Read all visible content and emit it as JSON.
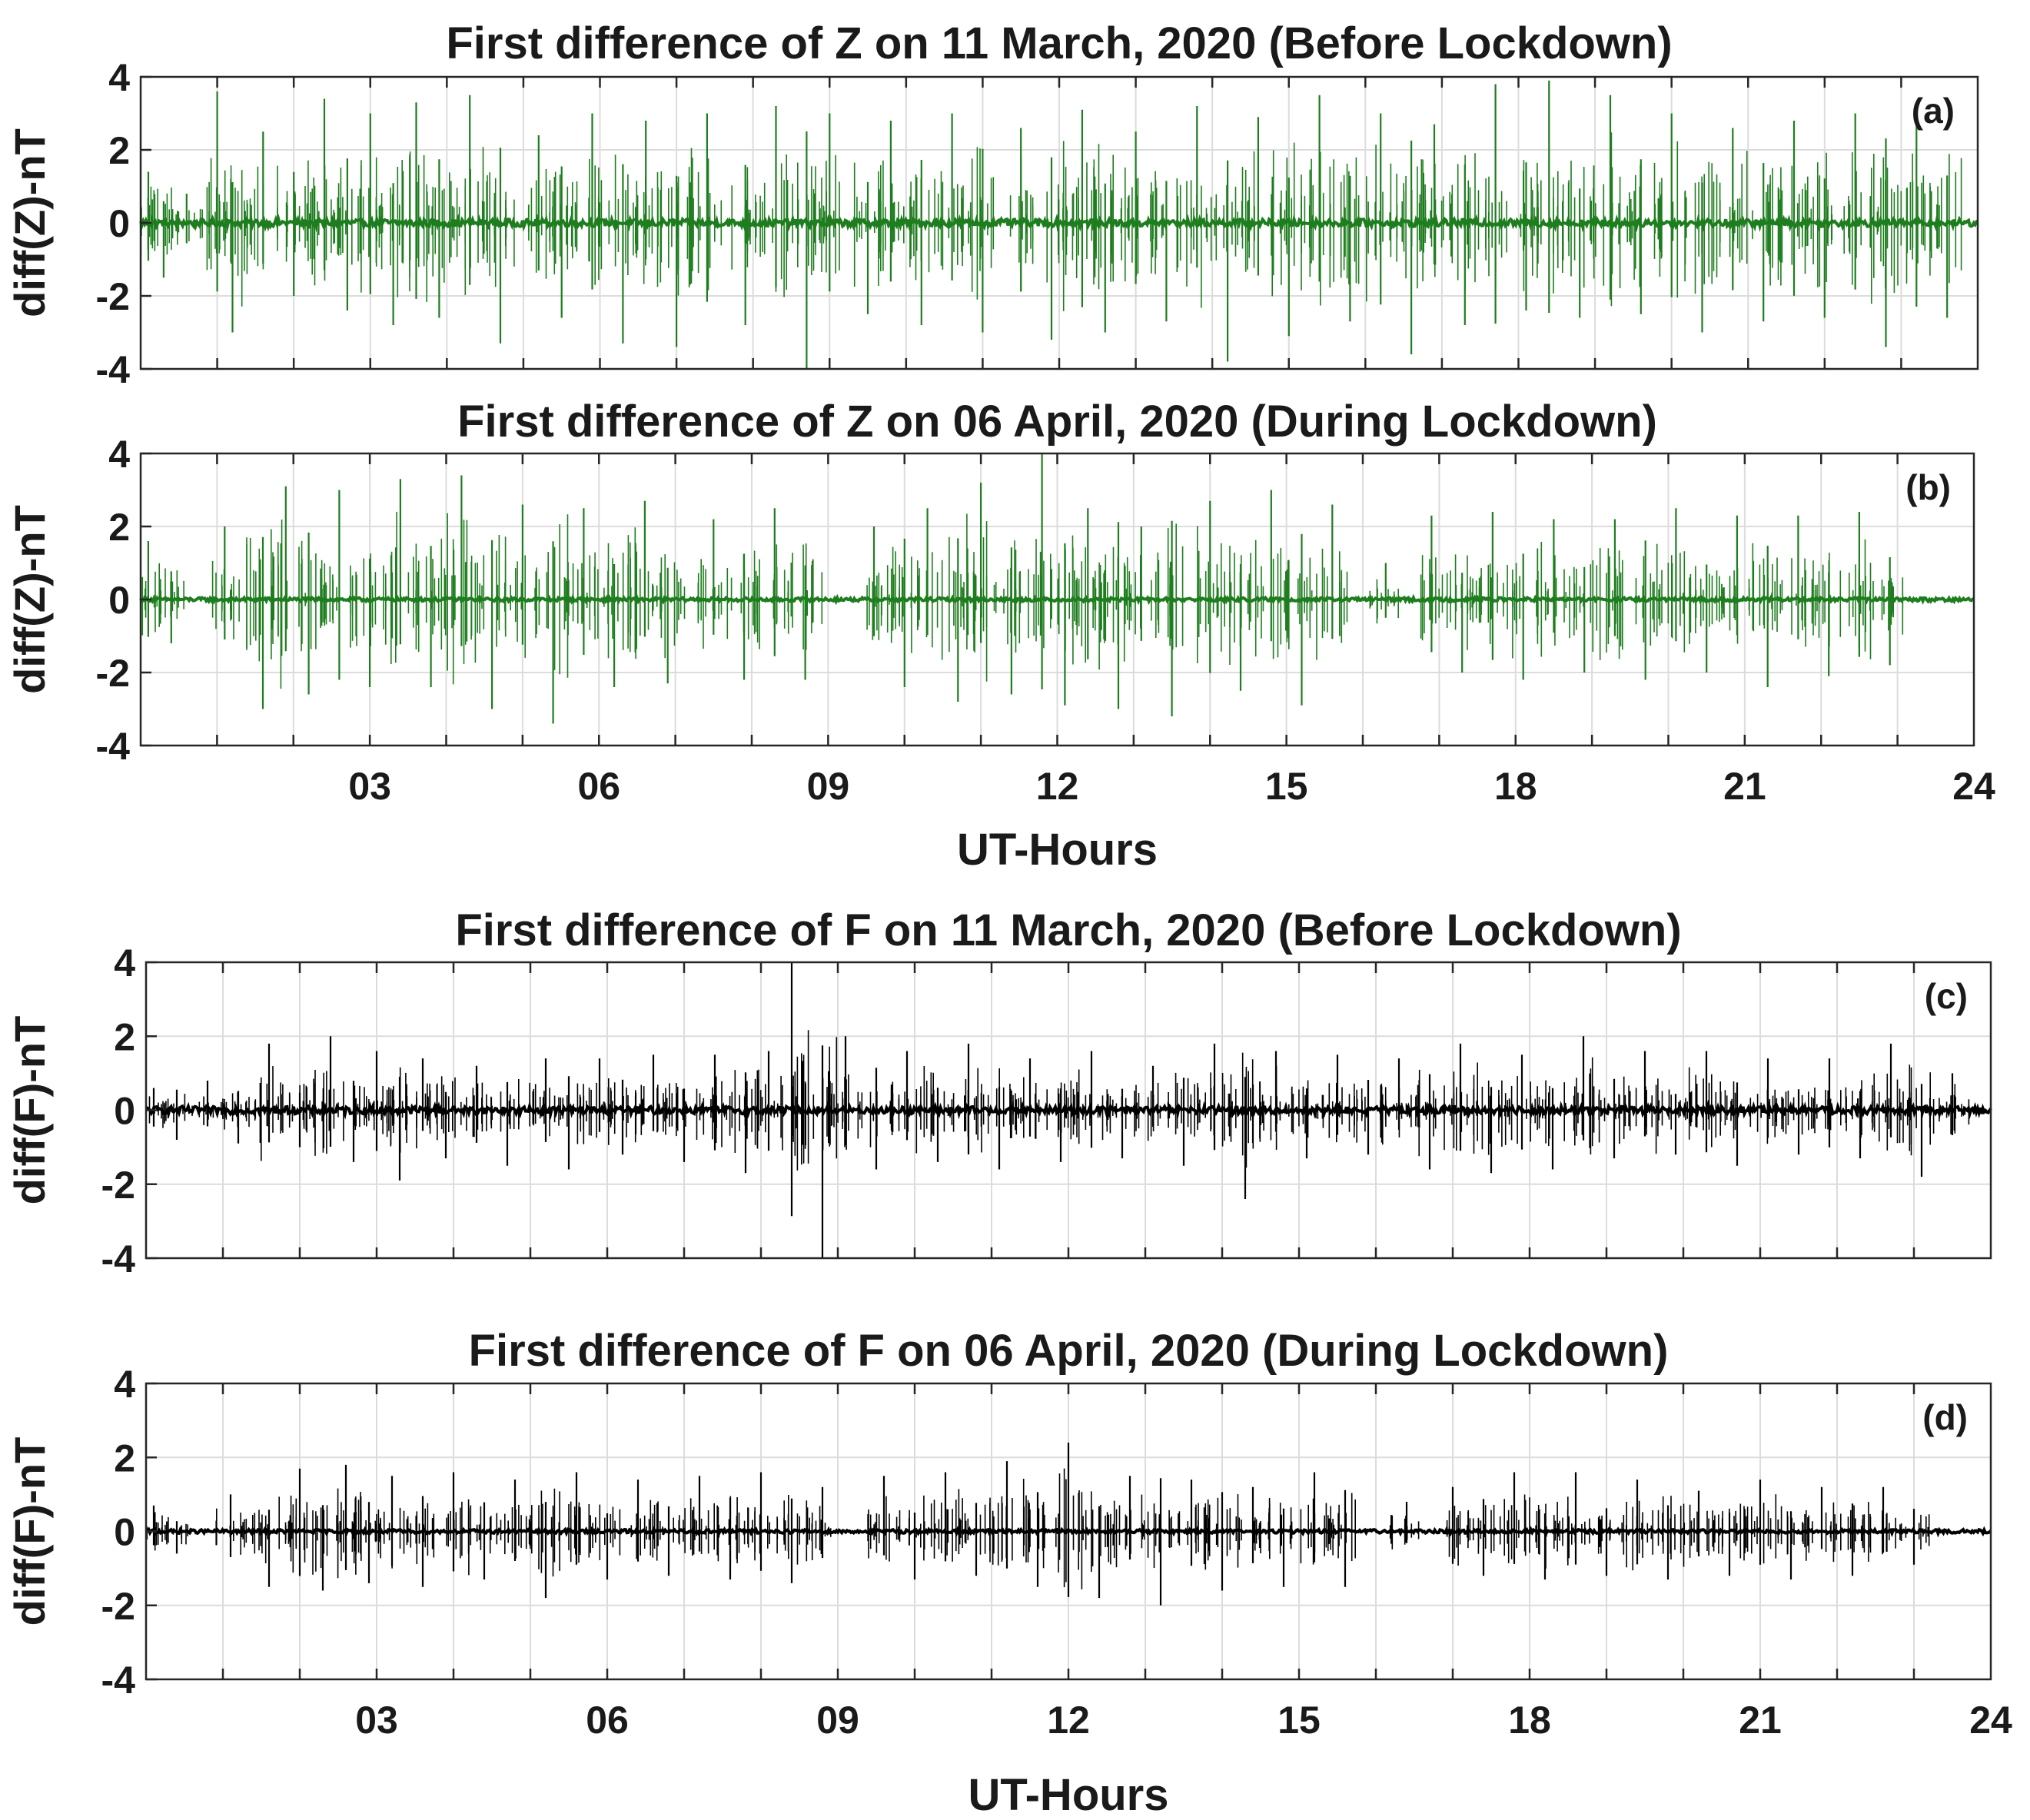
{
  "chart_data": [
    {
      "id": "a",
      "type": "line",
      "title": "First difference of Z on 11 March, 2020 (Before Lockdown)",
      "panel_label": "(a)",
      "ylabel": "diff(Z)-nT",
      "xlabel": "",
      "xlim": [
        0,
        24
      ],
      "ylim": [
        -4,
        4
      ],
      "yticks": [
        "4",
        "2",
        "0",
        "-2",
        "-4"
      ],
      "xticks": [],
      "grid": true,
      "color": "#1e7d1e",
      "series": [
        {
          "x": [
            0.1,
            0.3,
            0.6,
            1.0,
            1.2,
            1.6,
            2.0,
            2.4,
            2.7,
            3.0,
            3.3,
            3.6,
            3.9,
            4.3,
            4.7,
            5.2,
            5.5,
            5.9,
            6.3,
            6.6,
            7.0,
            7.4,
            7.9,
            8.3,
            8.7,
            9.0,
            9.5,
            9.8,
            10.2,
            10.6,
            11.0,
            11.5,
            11.9,
            12.3,
            12.6,
            13.0,
            13.4,
            13.8,
            14.2,
            14.6,
            15.0,
            15.4,
            15.8,
            16.2,
            16.6,
            16.9,
            17.3,
            17.7,
            18.1,
            18.4,
            18.8,
            19.2,
            19.6,
            20.0,
            20.4,
            20.8,
            21.2,
            21.6,
            22.0,
            22.4,
            22.8,
            23.2,
            23.6
          ],
          "y": [
            1.4,
            -1.5,
            0.8,
            3.6,
            -3.0,
            2.5,
            -2.0,
            3.4,
            -2.4,
            3.0,
            -2.8,
            3.3,
            -2.6,
            3.5,
            -3.3,
            2.4,
            -2.6,
            3.0,
            -3.3,
            2.8,
            -3.4,
            3.0,
            -2.8,
            3.2,
            -4.0,
            3.0,
            -2.5,
            2.8,
            -2.8,
            3.0,
            -3.0,
            2.6,
            -3.2,
            3.1,
            -3.0,
            2.5,
            -2.7,
            3.2,
            -3.8,
            2.9,
            -3.1,
            3.5,
            -2.7,
            3.0,
            -3.6,
            2.7,
            -2.8,
            3.8,
            -2.4,
            3.9,
            -2.6,
            3.5,
            -2.5,
            3.0,
            -3.0,
            2.6,
            -2.7,
            2.8,
            -2.6,
            3.0,
            -3.4,
            3.3,
            -2.6
          ]
        }
      ]
    },
    {
      "id": "b",
      "type": "line",
      "title": "First difference of Z on 06 April, 2020 (During Lockdown)",
      "panel_label": "(b)",
      "ylabel": "diff(Z)-nT",
      "xlabel": "UT-Hours",
      "xlim": [
        0,
        24
      ],
      "ylim": [
        -4,
        4
      ],
      "yticks": [
        "4",
        "2",
        "0",
        "-2",
        "-4"
      ],
      "xticks": [
        "03",
        "06",
        "09",
        "12",
        "15",
        "18",
        "21",
        "24"
      ],
      "grid": true,
      "color": "#1e7d1e",
      "series": [
        {
          "x": [
            0.1,
            0.4,
            1.1,
            1.6,
            1.9,
            2.2,
            2.6,
            3.0,
            3.4,
            3.8,
            4.2,
            4.6,
            5.0,
            5.4,
            5.8,
            6.2,
            6.6,
            6.9,
            7.5,
            7.9,
            8.3,
            8.7,
            9.6,
            10.0,
            10.3,
            10.7,
            11.0,
            11.4,
            11.8,
            12.1,
            12.4,
            12.8,
            13.1,
            13.5,
            14.0,
            14.4,
            14.8,
            15.2,
            15.6,
            16.3,
            16.9,
            17.3,
            17.7,
            18.1,
            18.5,
            18.9,
            19.3,
            19.7,
            20.1,
            20.5,
            20.9,
            21.3,
            21.7,
            22.1,
            22.5,
            22.9
          ],
          "y": [
            1.6,
            -1.2,
            2.0,
            -3.0,
            3.1,
            -2.6,
            3.0,
            -2.4,
            3.3,
            -2.4,
            3.4,
            -3.0,
            2.6,
            -3.4,
            2.5,
            -2.4,
            2.7,
            -2.3,
            2.2,
            -2.2,
            2.5,
            -2.2,
            2.0,
            -2.4,
            2.5,
            -2.8,
            3.2,
            -2.6,
            4.0,
            -2.9,
            2.5,
            -3.0,
            2.0,
            -3.2,
            2.7,
            -2.5,
            3.0,
            -2.9,
            2.6,
            1.0,
            2.3,
            -2.0,
            2.4,
            -2.2,
            2.2,
            -2.0,
            2.2,
            -2.2,
            2.5,
            -2.0,
            2.3,
            -2.4,
            2.3,
            -2.1,
            2.4,
            -1.8
          ]
        }
      ]
    },
    {
      "id": "c",
      "type": "line",
      "title": "First difference of F on 11 March, 2020 (Before Lockdown)",
      "panel_label": "(c)",
      "ylabel": "diff(F)-nT",
      "xlabel": "",
      "xlim": [
        0,
        24
      ],
      "ylim": [
        -4,
        4
      ],
      "yticks": [
        "4",
        "2",
        "0",
        "-2",
        "-4"
      ],
      "xticks": [],
      "grid": true,
      "color": "#000000",
      "series": [
        {
          "x": [
            0.1,
            0.4,
            0.8,
            1.2,
            1.6,
            2.0,
            2.4,
            2.7,
            3.0,
            3.3,
            3.6,
            3.9,
            4.3,
            4.7,
            5.2,
            5.5,
            5.9,
            6.2,
            6.6,
            7.0,
            7.4,
            7.8,
            8.1,
            8.4,
            8.8,
            9.1,
            9.5,
            9.9,
            10.3,
            10.7,
            11.1,
            11.5,
            11.9,
            12.3,
            12.7,
            13.1,
            13.5,
            13.9,
            14.3,
            14.7,
            15.1,
            15.5,
            15.9,
            16.3,
            16.7,
            17.1,
            17.5,
            17.9,
            18.3,
            18.7,
            19.1,
            19.5,
            19.9,
            20.3,
            20.7,
            21.1,
            21.5,
            21.9,
            22.3,
            22.7,
            23.1,
            23.5
          ],
          "y": [
            0.6,
            -0.8,
            0.8,
            -0.9,
            1.8,
            -1.0,
            2.0,
            -1.4,
            1.6,
            -1.9,
            1.4,
            -1.3,
            1.2,
            -1.5,
            1.4,
            -1.6,
            1.4,
            -1.2,
            1.5,
            -1.4,
            1.5,
            -1.7,
            1.6,
            4.0,
            -4.0,
            2.0,
            -1.6,
            1.6,
            -1.4,
            1.8,
            -1.6,
            1.4,
            -1.4,
            1.6,
            -1.3,
            1.2,
            -1.5,
            1.8,
            -2.4,
            1.6,
            -1.3,
            1.5,
            -1.2,
            1.4,
            -1.6,
            1.8,
            -1.7,
            1.5,
            -1.6,
            2.0,
            -1.3,
            1.6,
            -1.2,
            1.6,
            -1.5,
            1.4,
            -1.2,
            1.4,
            -1.3,
            1.8,
            -1.8,
            1.0
          ]
        }
      ]
    },
    {
      "id": "d",
      "type": "line",
      "title": "First difference of F on 06 April, 2020 (During Lockdown)",
      "panel_label": "(d)",
      "ylabel": "diff(F)-nT",
      "xlabel": "UT-Hours",
      "xlim": [
        0,
        24
      ],
      "ylim": [
        -4,
        4
      ],
      "yticks": [
        "4",
        "2",
        "0",
        "-2",
        "-4"
      ],
      "xticks": [
        "03",
        "06",
        "09",
        "12",
        "15",
        "18",
        "21",
        "24"
      ],
      "grid": true,
      "color": "#000000",
      "series": [
        {
          "x": [
            0.1,
            0.4,
            1.1,
            1.6,
            2.0,
            2.3,
            2.6,
            2.9,
            3.2,
            3.6,
            4.0,
            4.4,
            4.8,
            5.2,
            5.6,
            6.0,
            6.4,
            6.8,
            7.2,
            7.6,
            8.0,
            8.4,
            8.8,
            9.6,
            10.0,
            10.4,
            10.8,
            11.2,
            11.6,
            12.0,
            12.4,
            12.8,
            13.2,
            13.6,
            14.0,
            14.4,
            14.8,
            15.2,
            15.6,
            16.4,
            17.0,
            17.4,
            17.8,
            18.2,
            18.6,
            19.0,
            19.4,
            19.8,
            20.2,
            20.6,
            21.0,
            21.4,
            21.8,
            22.2,
            22.6,
            23.0
          ],
          "y": [
            0.7,
            -0.6,
            1.0,
            -1.5,
            1.7,
            -1.6,
            1.8,
            -1.4,
            1.5,
            -1.5,
            1.6,
            -1.3,
            1.4,
            -1.8,
            1.6,
            -1.3,
            1.4,
            -1.2,
            1.5,
            -1.3,
            1.6,
            -1.4,
            1.2,
            1.5,
            -1.3,
            1.6,
            -1.2,
            1.9,
            -1.5,
            2.4,
            -1.8,
            1.5,
            -2.0,
            1.4,
            -1.6,
            1.2,
            -1.5,
            1.6,
            -1.5,
            0.8,
            1.2,
            -1.2,
            1.6,
            -1.3,
            1.6,
            -1.2,
            1.4,
            -1.3,
            1.1,
            -1.2,
            1.4,
            -1.3,
            1.2,
            -1.2,
            1.2,
            -0.9
          ]
        }
      ]
    }
  ]
}
